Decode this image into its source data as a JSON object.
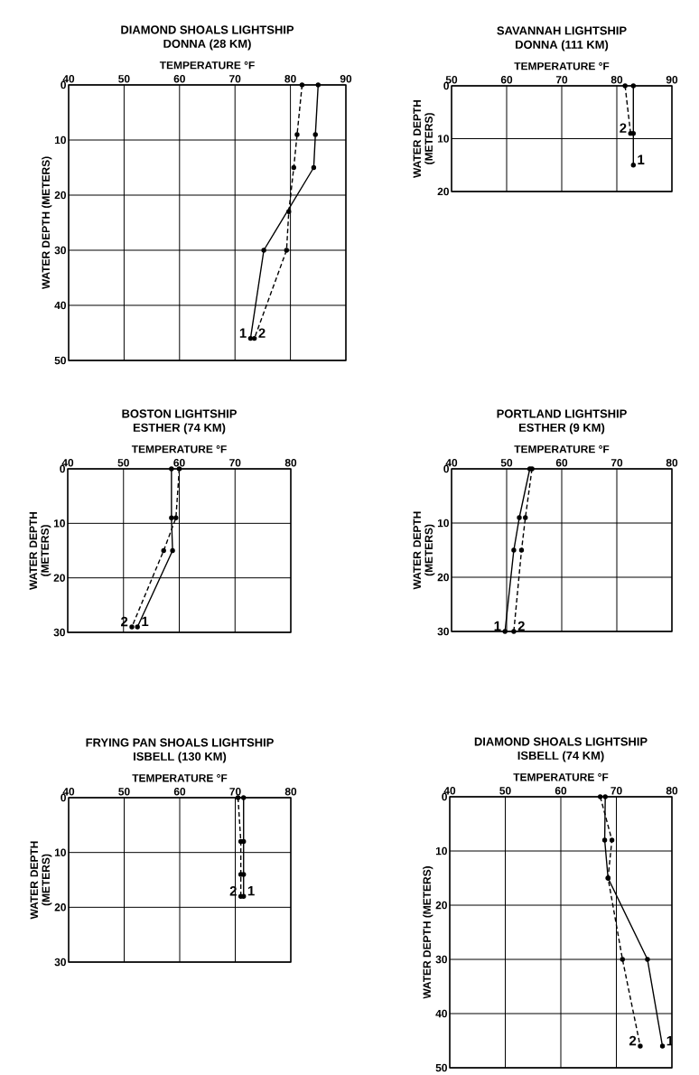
{
  "chart_data": [
    {
      "type": "line",
      "title": "DIAMOND SHOALS LIGHTSHIP",
      "subtitle": "DONNA (28 KM)",
      "xlabel": "TEMPERATURE °F",
      "ylabel": "WATER DEPTH (METERS)",
      "xlim": [
        40,
        90
      ],
      "ylim": [
        50,
        0
      ],
      "xticks": [
        40,
        50,
        60,
        70,
        80,
        90
      ],
      "yticks": [
        0,
        10,
        20,
        30,
        40,
        50
      ],
      "grid": true,
      "marker": "circle",
      "series": [
        {
          "name": "1",
          "color": "#000000",
          "line_style": "solid",
          "x": [
            85,
            84.5,
            84.2,
            75.2,
            72.8
          ],
          "values": [
            0,
            9,
            15,
            30,
            46
          ]
        },
        {
          "name": "2",
          "color": "#000000",
          "line_style": "dashed",
          "x": [
            82.1,
            81.2,
            80.6,
            79.7,
            79.3,
            73.5
          ],
          "values": [
            0,
            9,
            15,
            23,
            30,
            46
          ]
        }
      ]
    },
    {
      "type": "line",
      "title": "SAVANNAH LIGHTSHIP",
      "subtitle": "DONNA (111 KM)",
      "xlabel": "TEMPERATURE °F",
      "ylabel": "WATER DEPTH (METERS)",
      "xlim": [
        50,
        90
      ],
      "ylim": [
        20,
        0
      ],
      "xticks": [
        50,
        60,
        70,
        80,
        90
      ],
      "yticks": [
        0,
        10,
        20
      ],
      "grid": true,
      "marker": "circle",
      "series": [
        {
          "name": "1",
          "color": "#000000",
          "line_style": "solid",
          "x": [
            83,
            83,
            83
          ],
          "values": [
            0,
            9,
            15
          ]
        },
        {
          "name": "2",
          "color": "#000000",
          "line_style": "dashed",
          "x": [
            81.5,
            82.5
          ],
          "values": [
            0,
            9
          ]
        }
      ]
    },
    {
      "type": "line",
      "title": "BOSTON LIGHTSHIP",
      "subtitle": "ESTHER (74 KM)",
      "xlabel": "TEMPERATURE °F",
      "ylabel": "WATER DEPTH (METERS)",
      "xlim": [
        40,
        80
      ],
      "ylim": [
        30,
        0
      ],
      "xticks": [
        40,
        50,
        60,
        70,
        80
      ],
      "yticks": [
        0,
        10,
        20,
        30
      ],
      "grid": true,
      "marker": "circle",
      "series": [
        {
          "name": "1",
          "color": "#000000",
          "line_style": "solid",
          "x": [
            58.6,
            58.6,
            58.8,
            52.5
          ],
          "values": [
            0,
            9,
            15,
            29
          ]
        },
        {
          "name": "2",
          "color": "#000000",
          "line_style": "dashed",
          "x": [
            60,
            59.4,
            57.2,
            51.5
          ],
          "values": [
            0,
            9,
            15,
            29
          ]
        }
      ]
    },
    {
      "type": "line",
      "title": "PORTLAND LIGHTSHIP",
      "subtitle": "ESTHER (9 KM)",
      "xlabel": "TEMPERATURE °F",
      "ylabel": "WATER DEPTH (METERS)",
      "xlim": [
        40,
        80
      ],
      "ylim": [
        30,
        0
      ],
      "xticks": [
        40,
        50,
        60,
        70,
        80
      ],
      "yticks": [
        0,
        10,
        20,
        30
      ],
      "grid": true,
      "marker": "circle",
      "series": [
        {
          "name": "1",
          "color": "#000000",
          "line_style": "solid",
          "x": [
            54.2,
            52.3,
            51.3,
            49.7
          ],
          "values": [
            0,
            9,
            15,
            30
          ]
        },
        {
          "name": "2",
          "color": "#000000",
          "line_style": "dashed",
          "x": [
            54.6,
            53.4,
            52.7,
            51.3
          ],
          "values": [
            0,
            9,
            15,
            30
          ]
        }
      ]
    },
    {
      "type": "line",
      "title": "FRYING PAN SHOALS LIGHTSHIP",
      "subtitle": "ISBELL (130 KM)",
      "xlabel": "TEMPERATURE °F",
      "ylabel": "WATER DEPTH (METERS)",
      "xlim": [
        40,
        80
      ],
      "ylim": [
        30,
        0
      ],
      "xticks": [
        40,
        50,
        60,
        70,
        80
      ],
      "yticks": [
        0,
        10,
        20,
        30
      ],
      "grid": true,
      "marker": "circle",
      "series": [
        {
          "name": "1",
          "color": "#000000",
          "line_style": "solid",
          "x": [
            71.5,
            71.5,
            71.5,
            71.5
          ],
          "values": [
            0,
            8,
            14,
            18
          ]
        },
        {
          "name": "2",
          "color": "#000000",
          "line_style": "dashed",
          "x": [
            70.5,
            71,
            71,
            71
          ],
          "values": [
            0,
            8,
            14,
            18
          ]
        }
      ]
    },
    {
      "type": "line",
      "title": "DIAMOND SHOALS LIGHTSHIP",
      "subtitle": "ISBELL (74 KM)",
      "xlabel": "TEMPERATURE °F",
      "ylabel": "WATER DEPTH (METERS)",
      "xlim": [
        40,
        80
      ],
      "ylim": [
        50,
        0
      ],
      "xticks": [
        40,
        50,
        60,
        70,
        80
      ],
      "yticks": [
        0,
        10,
        20,
        30,
        40,
        50
      ],
      "grid": true,
      "marker": "circle",
      "series": [
        {
          "name": "1",
          "color": "#000000",
          "line_style": "solid",
          "x": [
            68,
            67.9,
            68.5,
            75.6,
            78.3
          ],
          "values": [
            0,
            8,
            15,
            30,
            46
          ]
        },
        {
          "name": "2",
          "color": "#000000",
          "line_style": "dashed",
          "x": [
            67.1,
            69.2,
            68.5,
            71.1,
            74.3
          ],
          "values": [
            0,
            8,
            15,
            30,
            46
          ]
        }
      ]
    }
  ]
}
